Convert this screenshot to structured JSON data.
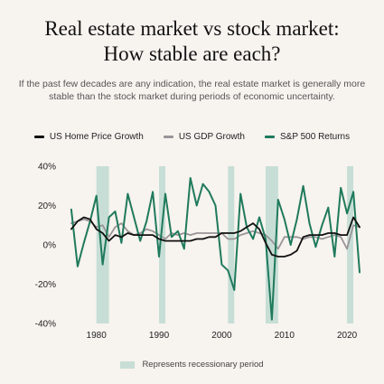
{
  "header": {
    "title_line1": "Real estate market vs stock market:",
    "title_line2": "How stable are each?",
    "subtitle": "If the past few decades are any indication, the real estate market is generally more stable than the stock market during periods of economic uncertainty."
  },
  "footer": {
    "recession_label": "Represents recessionary period"
  },
  "colors": {
    "background": "#f7f3ef",
    "home_price": "#111111",
    "gdp": "#9a9498",
    "sp500": "#1f7a5c",
    "recession": "#c7ded6"
  },
  "chart_data": {
    "type": "line",
    "title": "",
    "xlabel": "",
    "ylabel": "",
    "xlim": [
      1975,
      2022
    ],
    "ylim": [
      -40,
      40
    ],
    "x_ticks": [
      1980,
      1990,
      2000,
      2010,
      2020
    ],
    "y_ticks": [
      40,
      20,
      0,
      -20,
      -40
    ],
    "y_tick_labels": [
      "40%",
      "20%",
      "0%",
      "-20%",
      "-40%"
    ],
    "legend_position": "top",
    "recession_periods": [
      [
        1980,
        1982
      ],
      [
        1990,
        1991
      ],
      [
        2001,
        2002
      ],
      [
        2007,
        2009
      ],
      [
        2020,
        2021
      ]
    ],
    "x": [
      1976,
      1977,
      1978,
      1979,
      1980,
      1981,
      1982,
      1983,
      1984,
      1985,
      1986,
      1987,
      1988,
      1989,
      1990,
      1991,
      1992,
      1993,
      1994,
      1995,
      1996,
      1997,
      1998,
      1999,
      2000,
      2001,
      2002,
      2003,
      2004,
      2005,
      2006,
      2007,
      2008,
      2009,
      2010,
      2011,
      2012,
      2013,
      2014,
      2015,
      2016,
      2017,
      2018,
      2019,
      2020,
      2021,
      2022
    ],
    "series": [
      {
        "name": "US Home Price Growth",
        "color": "#111111",
        "values": [
          8,
          12,
          14,
          13,
          8,
          6,
          2,
          5,
          4,
          6,
          5,
          5,
          5,
          5,
          3,
          2,
          2,
          2,
          2,
          2,
          3,
          3,
          4,
          4,
          6,
          6,
          6,
          7,
          9,
          11,
          8,
          1,
          -5,
          -6,
          -6,
          -5,
          -3,
          4,
          5,
          5,
          5,
          6,
          6,
          5,
          5,
          14,
          9
        ]
      },
      {
        "name": "US GDP Growth",
        "color": "#9a9498",
        "values": [
          11,
          12,
          13,
          12,
          9,
          10,
          4,
          9,
          11,
          7,
          5,
          6,
          8,
          7,
          5,
          3,
          6,
          5,
          6,
          5,
          6,
          6,
          6,
          6,
          6,
          3,
          3,
          5,
          6,
          7,
          6,
          5,
          2,
          -2,
          4,
          4,
          4,
          3,
          4,
          4,
          3,
          4,
          5,
          4,
          -2,
          10,
          9
        ]
      },
      {
        "name": "S&P 500 Returns",
        "color": "#1f7a5c",
        "values": [
          18,
          -11,
          1,
          12,
          25,
          -10,
          14,
          17,
          1,
          26,
          14,
          2,
          12,
          27,
          -6,
          26,
          4,
          7,
          -2,
          34,
          20,
          31,
          27,
          20,
          -10,
          -13,
          -23,
          26,
          9,
          3,
          14,
          3,
          -38,
          23,
          13,
          0,
          13,
          30,
          11,
          -1,
          10,
          19,
          -6,
          29,
          16,
          27,
          -14
        ]
      }
    ]
  }
}
